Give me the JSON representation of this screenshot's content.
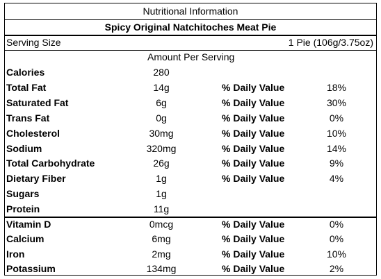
{
  "title": "Nutritional Information",
  "product": "Spicy Original Natchitoches Meat Pie",
  "serving": {
    "label": "Serving Size",
    "value": "1 Pie (106g/3.75oz)"
  },
  "amount_header": "Amount Per Serving",
  "nutrients": [
    {
      "name": "Calories",
      "amount": "280",
      "dv_label": "",
      "dv": ""
    },
    {
      "name": "Total Fat",
      "amount": "14g",
      "dv_label": "% Daily Value",
      "dv": "18%"
    },
    {
      "name": "Saturated Fat",
      "amount": "6g",
      "dv_label": "% Daily Value",
      "dv": "30%"
    },
    {
      "name": "Trans Fat",
      "amount": "0g",
      "dv_label": "% Daily Value",
      "dv": "0%"
    },
    {
      "name": "Cholesterol",
      "amount": "30mg",
      "dv_label": "% Daily Value",
      "dv": "10%"
    },
    {
      "name": "Sodium",
      "amount": "320mg",
      "dv_label": "% Daily Value",
      "dv": "14%"
    },
    {
      "name": "Total Carbohydrate",
      "amount": "26g",
      "dv_label": "% Daily Value",
      "dv": "9%"
    },
    {
      "name": "Dietary Fiber",
      "amount": "1g",
      "dv_label": "% Daily Value",
      "dv": "4%"
    },
    {
      "name": "Sugars",
      "amount": "1g",
      "dv_label": "",
      "dv": ""
    },
    {
      "name": "Protein",
      "amount": "11g",
      "dv_label": "",
      "dv": ""
    }
  ],
  "minerals": [
    {
      "name": "Vitamin D",
      "amount": "0mcg",
      "dv_label": "% Daily Value",
      "dv": "0%"
    },
    {
      "name": "Calcium",
      "amount": "6mg",
      "dv_label": "% Daily Value",
      "dv": "0%"
    },
    {
      "name": "Iron",
      "amount": "2mg",
      "dv_label": "% Daily Value",
      "dv": "10%"
    },
    {
      "name": "Potassium",
      "amount": "134mg",
      "dv_label": "% Daily Value",
      "dv": "2%"
    }
  ]
}
